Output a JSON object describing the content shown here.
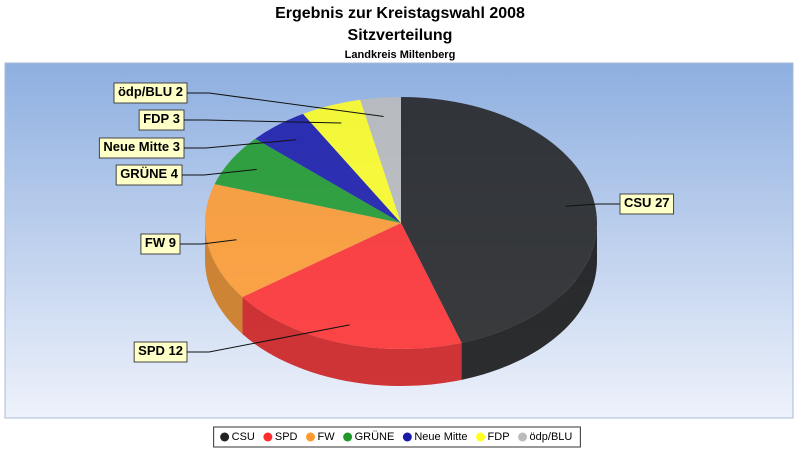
{
  "chart_data": {
    "type": "pie3d",
    "title": "Ergebnis zur Kreistagswahl 2008",
    "subtitle": "Sitzverteilung",
    "region": "Landkreis Miltenberg",
    "categories": [
      "CSU",
      "SPD",
      "FW",
      "GRÜNE",
      "Neue Mitte",
      "FDP",
      "ödp/BLU"
    ],
    "values": [
      27,
      12,
      9,
      4,
      3,
      3,
      2
    ],
    "colors": [
      "#222222",
      "#ff2e2e",
      "#ff9a2e",
      "#1f9a2a",
      "#1a1aa8",
      "#ffff22",
      "#bbbbbb"
    ],
    "legend": "bottom"
  }
}
